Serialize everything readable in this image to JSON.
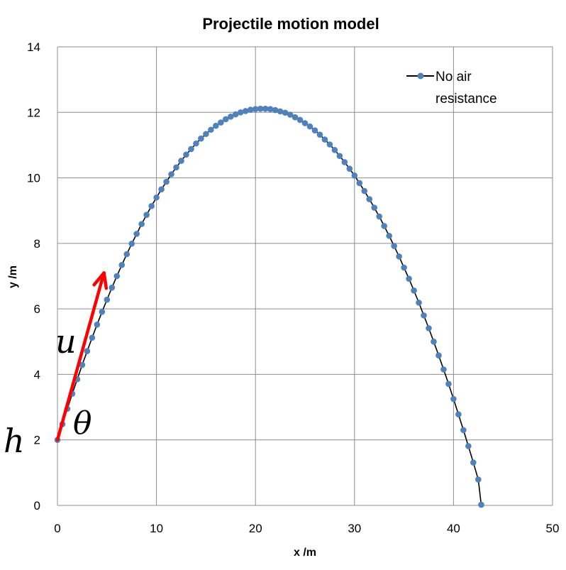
{
  "chart_data": {
    "type": "scatter",
    "title": "Projectile motion model",
    "xlabel": "x /m",
    "ylabel": "y /m",
    "xlim": [
      0,
      50
    ],
    "ylim": [
      0,
      14
    ],
    "xticks": [
      "0",
      "10",
      "20",
      "30",
      "40",
      "50"
    ],
    "yticks": [
      "0",
      "2",
      "4",
      "6",
      "8",
      "10",
      "12",
      "14"
    ],
    "grid": true,
    "legend_position": "top-right",
    "series": [
      {
        "name": "No air resistance",
        "marker_color": "#4F81BD",
        "line_color": "#000000",
        "x": [
          0,
          0.5,
          1,
          1.5,
          2,
          2.5,
          3,
          3.5,
          4,
          4.5,
          5,
          5.5,
          6,
          6.5,
          7,
          7.5,
          8,
          8.5,
          9,
          9.5,
          10,
          10.5,
          11,
          11.5,
          12,
          12.5,
          13,
          13.5,
          14,
          14.5,
          15,
          15.5,
          16,
          16.5,
          17,
          17.5,
          18,
          18.5,
          19,
          19.5,
          20,
          20.5,
          21,
          21.5,
          22,
          22.5,
          23,
          23.5,
          24,
          24.5,
          25,
          25.5,
          26,
          26.5,
          27,
          27.5,
          28,
          28.5,
          29,
          29.5,
          30,
          30.5,
          31,
          31.5,
          32,
          32.5,
          33,
          33.5,
          34,
          34.5,
          35,
          35.5,
          36,
          36.5,
          37,
          37.5,
          38,
          38.5,
          39,
          39.5,
          40,
          40.5,
          41,
          41.5,
          42,
          42.5,
          42.8
        ],
        "y": [
          2,
          2.48,
          2.95,
          3.41,
          3.85,
          4.29,
          4.71,
          5.12,
          5.52,
          5.91,
          6.28,
          6.65,
          7.0,
          7.34,
          7.67,
          7.99,
          8.29,
          8.59,
          8.87,
          9.14,
          9.4,
          9.65,
          9.88,
          10.11,
          10.32,
          10.52,
          10.71,
          10.88,
          11.05,
          11.2,
          11.34,
          11.47,
          11.59,
          11.69,
          11.79,
          11.87,
          11.94,
          12.0,
          12.04,
          12.08,
          12.1,
          12.11,
          12.11,
          12.1,
          12.07,
          12.03,
          11.99,
          11.93,
          11.85,
          11.77,
          11.67,
          11.57,
          11.45,
          11.32,
          11.17,
          11.02,
          10.85,
          10.67,
          10.48,
          10.28,
          10.07,
          9.84,
          9.6,
          9.35,
          9.09,
          8.82,
          8.53,
          8.23,
          7.92,
          7.6,
          7.26,
          6.92,
          6.56,
          6.19,
          5.8,
          5.41,
          5.0,
          4.58,
          4.15,
          3.71,
          3.25,
          2.78,
          2.3,
          1.81,
          1.31,
          0.79,
          0.02
        ]
      }
    ],
    "annotations": [
      {
        "text": "u"
      },
      {
        "text": "θ"
      },
      {
        "text": "h"
      }
    ],
    "arrow": {
      "color": "#FF0000",
      "from": [
        0,
        2
      ],
      "to": [
        4.7,
        7.1
      ]
    }
  }
}
